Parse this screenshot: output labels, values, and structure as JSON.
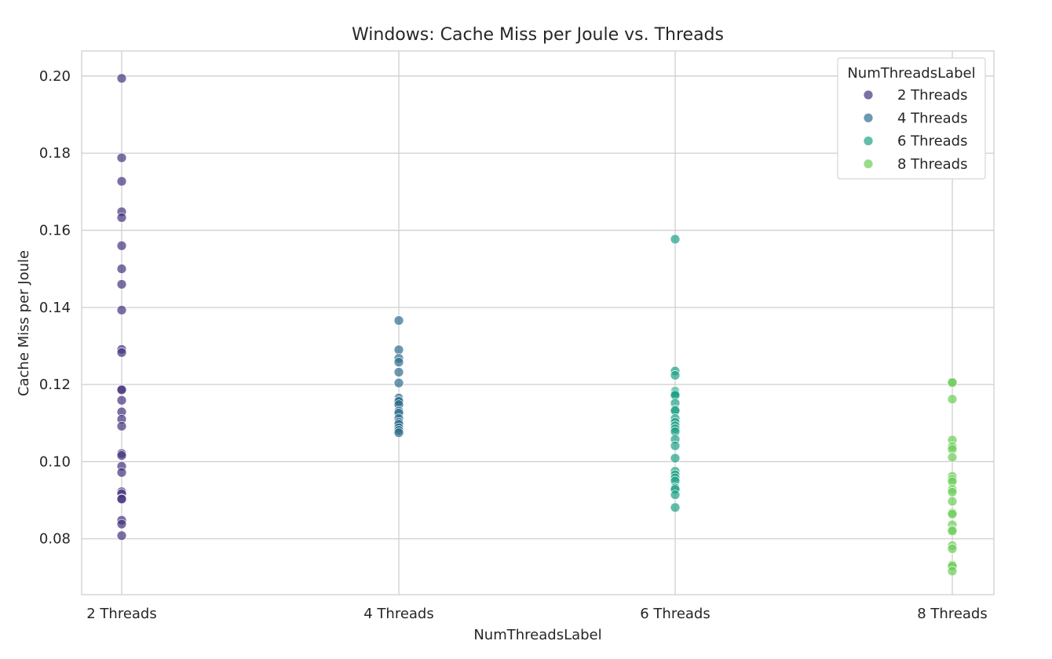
{
  "chart_data": {
    "type": "scatter",
    "title": "Windows: Cache Miss per Joule vs. Threads",
    "xlabel": "NumThreadsLabel",
    "ylabel": "Cache Miss per Joule",
    "categories": [
      "2 Threads",
      "4 Threads",
      "6 Threads",
      "8 Threads"
    ],
    "y_ticks": [
      "0.08",
      "0.10",
      "0.12",
      "0.14",
      "0.16",
      "0.18",
      "0.20"
    ],
    "ylim": [
      0.0655,
      0.2065
    ],
    "grid": true,
    "legend": {
      "title": "NumThreadsLabel",
      "placement": "top-right"
    },
    "series": [
      {
        "name": "2 Threads",
        "color": "#46337e",
        "values": [
          0.1994,
          0.1788,
          0.1727,
          0.1648,
          0.1633,
          0.156,
          0.15,
          0.146,
          0.1393,
          0.1291,
          0.1283,
          0.1188,
          0.1186,
          0.1159,
          0.1129,
          0.111,
          0.1092,
          0.1021,
          0.1016,
          0.0988,
          0.0972,
          0.0922,
          0.0917,
          0.0904,
          0.0903,
          0.0848,
          0.0838,
          0.0808
        ]
      },
      {
        "name": "4 Threads",
        "color": "#2e6e8e",
        "values": [
          0.1366,
          0.129,
          0.1268,
          0.1258,
          0.1232,
          0.1204,
          0.1166,
          0.1164,
          0.1159,
          0.1156,
          0.1148,
          0.1131,
          0.1126,
          0.1112,
          0.1102,
          0.1097,
          0.1088,
          0.1081,
          0.1075
        ]
      },
      {
        "name": "6 Threads",
        "color": "#1fa187",
        "values": [
          0.1577,
          0.1235,
          0.1224,
          0.1183,
          0.1179,
          0.1175,
          0.1172,
          0.1152,
          0.1135,
          0.1132,
          0.1112,
          0.1102,
          0.1093,
          0.1085,
          0.1078,
          0.1058,
          0.1041,
          0.1009,
          0.0975,
          0.0966,
          0.0958,
          0.095,
          0.0932,
          0.0928,
          0.0914,
          0.0881
        ]
      },
      {
        "name": "8 Threads",
        "color": "#6ccd5a",
        "values": [
          0.1206,
          0.1205,
          0.1162,
          0.1056,
          0.1039,
          0.1032,
          0.1011,
          0.0962,
          0.0954,
          0.0948,
          0.0928,
          0.0921,
          0.0897,
          0.0867,
          0.0864,
          0.0836,
          0.0823,
          0.082,
          0.0782,
          0.0774,
          0.0732,
          0.0729,
          0.0716
        ]
      }
    ]
  }
}
